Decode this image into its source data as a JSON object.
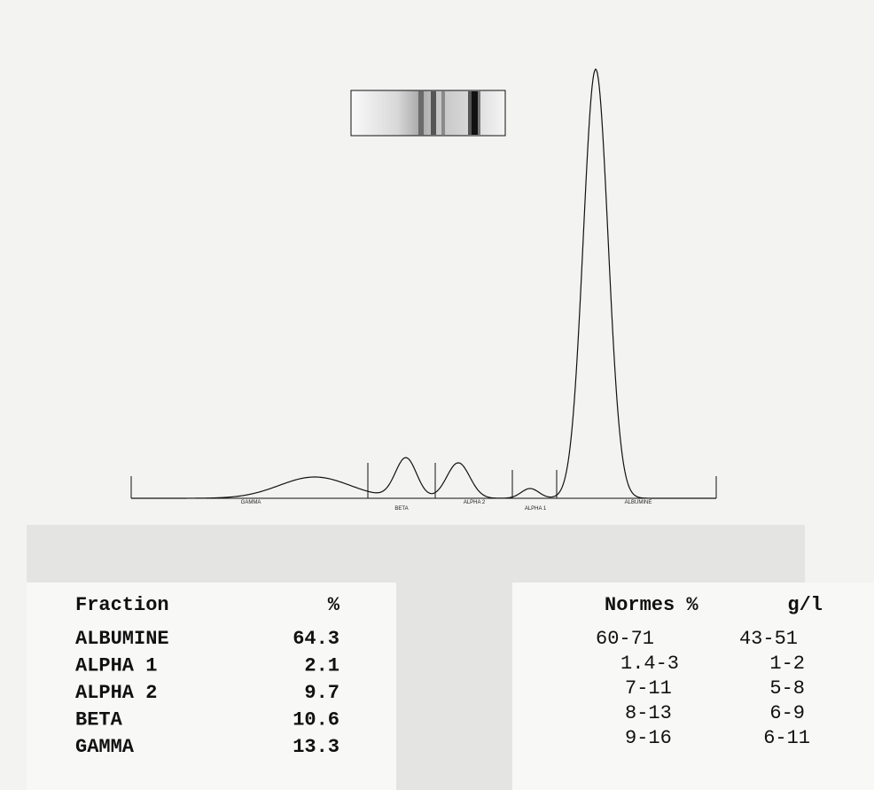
{
  "electrophoresis": {
    "band_labels": [
      "GAMMA",
      "BETA",
      "ALPHA 2",
      "ALPHA 1",
      "ALBUMINE"
    ]
  },
  "results": {
    "header": [
      "Fraction",
      "%"
    ],
    "rows": [
      [
        "ALBUMINE",
        64.3
      ],
      [
        "ALPHA 1",
        2.1
      ],
      [
        "ALPHA 2",
        9.7
      ],
      [
        "BETA",
        10.6
      ],
      [
        "GAMMA",
        13.3
      ]
    ]
  },
  "norms": {
    "header": [
      "Normes %",
      "g/l"
    ],
    "rows": [
      [
        "60-71",
        "43-51"
      ],
      [
        "1.4-3",
        "1-2"
      ],
      [
        "7-11",
        "5-8"
      ],
      [
        "8-13",
        "6-9"
      ],
      [
        "9-16",
        "6-11"
      ]
    ]
  }
}
